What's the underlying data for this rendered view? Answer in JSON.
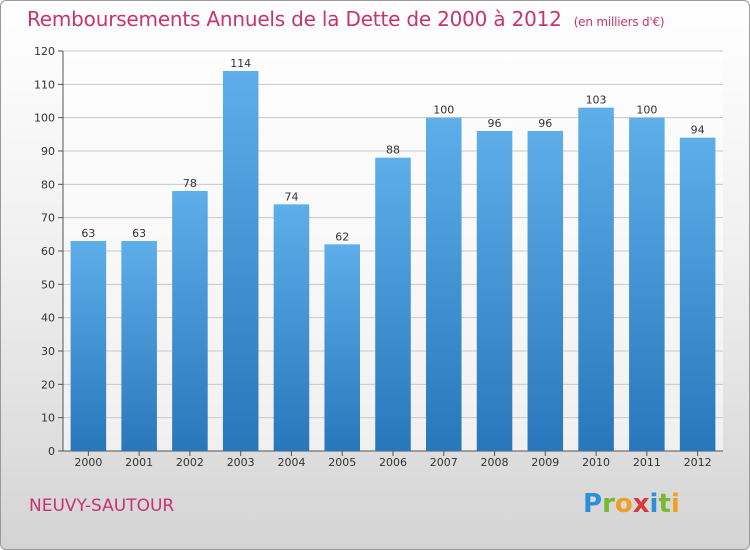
{
  "header": {
    "title": "Remboursements Annuels de la Dette de 2000 à 2012",
    "unit": "(en milliers d'€)"
  },
  "footer": {
    "commune": "NEUVY-SAUTOUR",
    "logo": "Proxiti"
  },
  "colors": {
    "title": "#c8336f",
    "bar_top": "#5eaeea",
    "bar_bottom": "#2877bb"
  },
  "chart_data": {
    "type": "bar",
    "title": "Remboursements Annuels de la Dette de 2000 à 2012",
    "subtitle": "(en milliers d'€)",
    "xlabel": "",
    "ylabel": "",
    "categories": [
      "2000",
      "2001",
      "2002",
      "2003",
      "2004",
      "2005",
      "2006",
      "2007",
      "2008",
      "2009",
      "2010",
      "2011",
      "2012"
    ],
    "values": [
      63,
      63,
      78,
      114,
      74,
      62,
      88,
      100,
      96,
      96,
      103,
      100,
      94
    ],
    "ylim": [
      0,
      120
    ],
    "yticks": [
      0,
      10,
      20,
      30,
      40,
      50,
      60,
      70,
      80,
      90,
      100,
      110,
      120
    ],
    "grid": "horizontal",
    "data_labels": true
  }
}
